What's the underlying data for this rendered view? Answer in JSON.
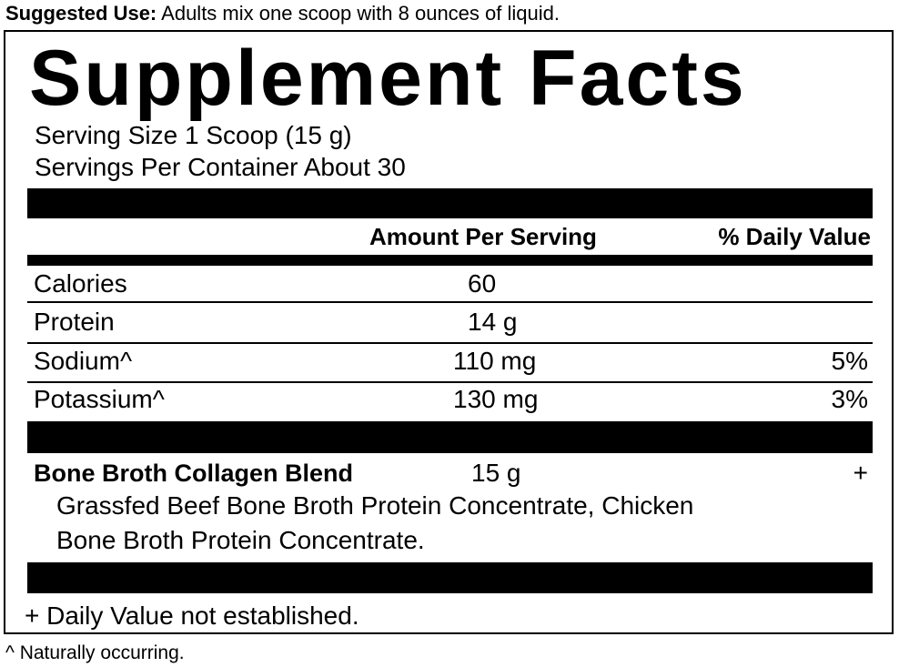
{
  "suggested_use": {
    "label": "Suggested Use:",
    "text": " Adults mix one scoop with 8 ounces of liquid."
  },
  "title": "Supplement Facts",
  "serving_size": "Serving Size 1 Scoop (15 g)",
  "servings_per_container": "Servings Per Container About 30",
  "headers": {
    "amount": "Amount Per Serving",
    "dv": "% Daily Value"
  },
  "rows": [
    {
      "name": "Calories",
      "amount": "60",
      "dv": ""
    },
    {
      "name": "Protein",
      "amount": "14 g",
      "dv": ""
    },
    {
      "name": "Sodium^",
      "amount": "110 mg",
      "dv": "5%"
    },
    {
      "name": "Potassium^",
      "amount": "130 mg",
      "dv": "3%"
    }
  ],
  "blend": {
    "name": "Bone Broth Collagen Blend",
    "amount": "15 g",
    "dv": "+",
    "line1": "Grassfed Beef Bone Broth Protein Concentrate, Chicken",
    "line2": "Bone Broth Protein Concentrate."
  },
  "footnote_box": "+ Daily Value not established.",
  "footnote": "^ Naturally occurring."
}
